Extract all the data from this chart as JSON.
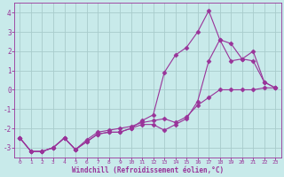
{
  "background_color": "#c8eaea",
  "grid_color": "#a8cccc",
  "line_color": "#993399",
  "marker": "D",
  "marker_size": 2.5,
  "line_width": 0.8,
  "xlabel": "Windchill (Refroidissement éolien,°C)",
  "tick_color": "#993399",
  "xlim": [
    -0.5,
    23.5
  ],
  "ylim": [
    -3.5,
    4.5
  ],
  "yticks": [
    -3,
    -2,
    -1,
    0,
    1,
    2,
    3,
    4
  ],
  "xticks": [
    0,
    1,
    2,
    3,
    4,
    5,
    6,
    7,
    8,
    9,
    10,
    11,
    12,
    13,
    14,
    15,
    16,
    17,
    18,
    19,
    20,
    21,
    22,
    23
  ],
  "line1_x": [
    0,
    1,
    2,
    3,
    4,
    5,
    6,
    7,
    8,
    9,
    10,
    11,
    12,
    13,
    14,
    15,
    16,
    17,
    18,
    19,
    20,
    21,
    22,
    23
  ],
  "line1_y": [
    -2.5,
    -3.2,
    -3.2,
    -3.0,
    -2.5,
    -3.1,
    -2.7,
    -2.3,
    -2.2,
    -2.2,
    -2.0,
    -1.8,
    -1.8,
    -2.1,
    -1.8,
    -1.5,
    -0.6,
    1.5,
    2.6,
    1.5,
    1.6,
    1.5,
    0.4,
    0.1
  ],
  "line2_x": [
    0,
    1,
    2,
    3,
    4,
    5,
    6,
    7,
    8,
    9,
    10,
    11,
    12,
    13,
    14,
    15,
    16,
    17,
    18,
    19,
    20,
    21,
    22,
    23
  ],
  "line2_y": [
    -2.5,
    -3.2,
    -3.2,
    -3.0,
    -2.5,
    -3.1,
    -2.7,
    -2.3,
    -2.2,
    -2.2,
    -2.0,
    -1.6,
    -1.3,
    0.9,
    1.8,
    2.2,
    3.0,
    4.1,
    2.6,
    2.4,
    1.6,
    2.0,
    0.4,
    0.1
  ],
  "line3_x": [
    0,
    1,
    2,
    3,
    4,
    5,
    6,
    7,
    8,
    9,
    10,
    11,
    12,
    13,
    14,
    15,
    16,
    17,
    18,
    19,
    20,
    21,
    22,
    23
  ],
  "line3_y": [
    -2.5,
    -3.2,
    -3.2,
    -3.0,
    -2.5,
    -3.1,
    -2.6,
    -2.2,
    -2.1,
    -2.0,
    -1.9,
    -1.7,
    -1.6,
    -1.5,
    -1.7,
    -1.4,
    -0.8,
    -0.4,
    0.0,
    0.0,
    0.0,
    0.0,
    0.1,
    0.1
  ]
}
